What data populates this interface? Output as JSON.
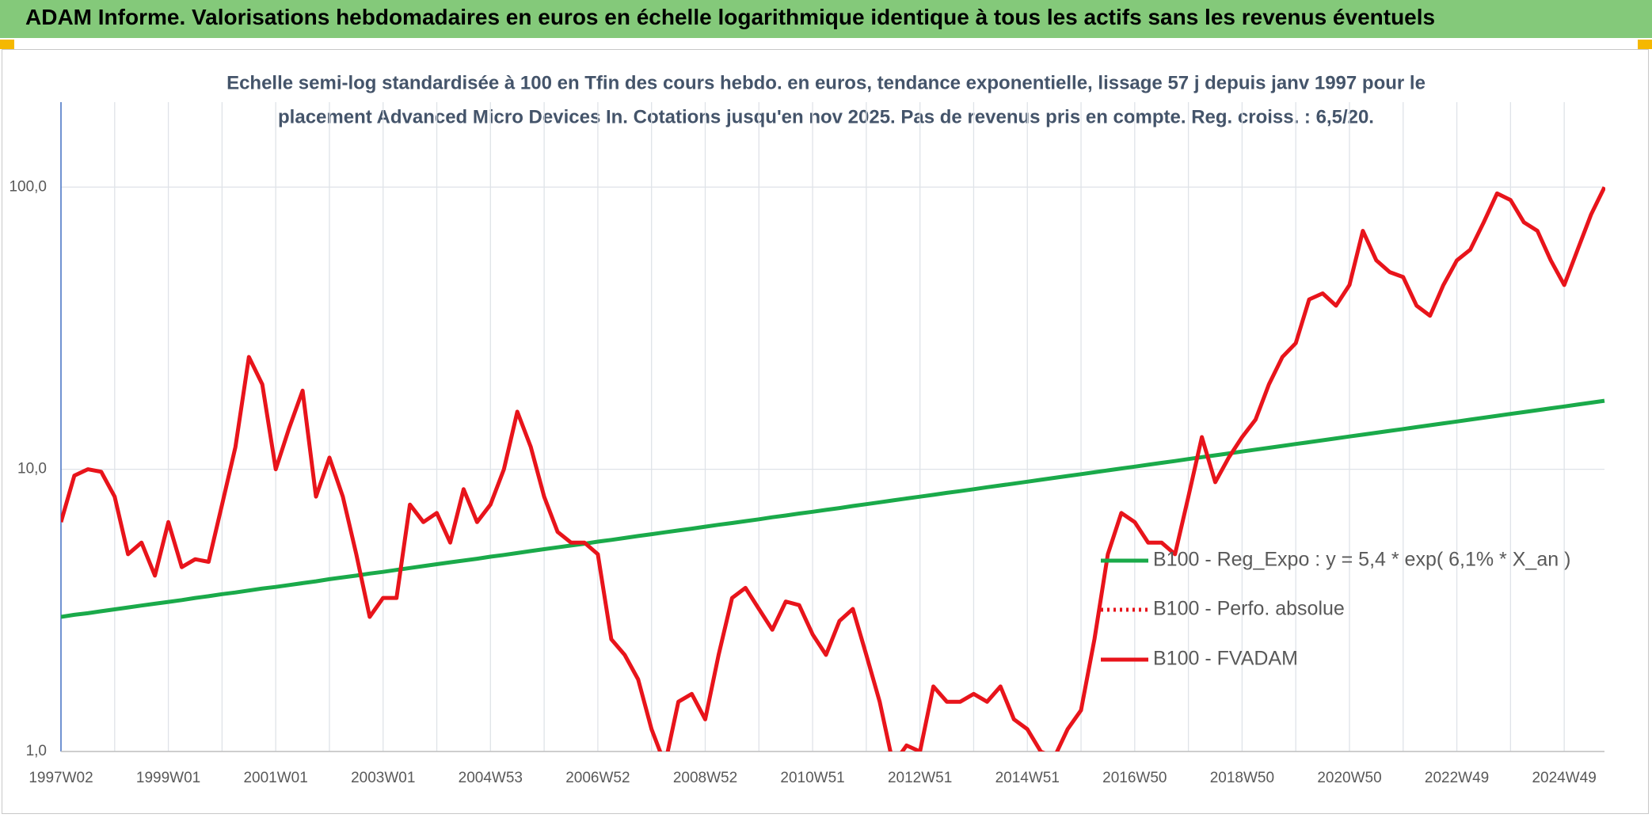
{
  "header": {
    "title": "ADAM Informe. Valorisations hebdomadaires en euros en échelle logarithmique identique à tous les actifs sans les revenus éventuels"
  },
  "chart_data": {
    "type": "line",
    "subtitle": [
      "Echelle semi-log standardisée à 100 en Tfin des cours hebdo. en euros, tendance exponentielle, lissage 57 j depuis janv 1997 pour le",
      "placement Advanced Micro Devices In. Cotations jusqu'en nov 2025. Pas de revenus pris en compte. Reg. croiss. : 6,5/20."
    ],
    "log_scale": true,
    "grid": true,
    "legend": "right",
    "ylim": [
      1,
      200
    ],
    "yticks": [
      {
        "value": 1,
        "label": "1,0"
      },
      {
        "value": 10,
        "label": "10,0"
      },
      {
        "value": 100,
        "label": "100,0"
      }
    ],
    "categories": [
      "1997W02",
      null,
      null,
      null,
      null,
      null,
      null,
      null,
      "1999W01",
      null,
      null,
      null,
      null,
      null,
      null,
      null,
      "2001W01",
      null,
      null,
      null,
      null,
      null,
      null,
      null,
      "2003W01",
      null,
      null,
      null,
      null,
      null,
      null,
      null,
      "2004W53",
      null,
      null,
      null,
      null,
      null,
      null,
      null,
      "2006W52",
      null,
      null,
      null,
      null,
      null,
      null,
      null,
      "2008W52",
      null,
      null,
      null,
      null,
      null,
      null,
      null,
      "2010W51",
      null,
      null,
      null,
      null,
      null,
      null,
      null,
      "2012W51",
      null,
      null,
      null,
      null,
      null,
      null,
      null,
      "2014W51",
      null,
      null,
      null,
      null,
      null,
      null,
      null,
      "2016W50",
      null,
      null,
      null,
      null,
      null,
      null,
      null,
      "2018W50",
      null,
      null,
      null,
      null,
      null,
      null,
      null,
      "2020W50",
      null,
      null,
      null,
      null,
      null,
      null,
      null,
      "2022W49",
      null,
      null,
      null,
      null,
      null,
      null,
      null,
      "2024W49",
      null,
      null,
      null
    ],
    "series": [
      {
        "name": "B100 - Reg_Expo : y = 5,4 * exp( 6,1% *  X_an )",
        "color": "#1aaa4a",
        "style": "solid",
        "values": [
          3.0,
          3.05,
          3.09,
          3.14,
          3.19,
          3.24,
          3.29,
          3.34,
          3.39,
          3.44,
          3.5,
          3.55,
          3.61,
          3.66,
          3.72,
          3.78,
          3.83,
          3.89,
          3.95,
          4.01,
          4.08,
          4.14,
          4.2,
          4.27,
          4.33,
          4.4,
          4.47,
          4.54,
          4.61,
          4.68,
          4.75,
          4.82,
          4.9,
          4.97,
          5.05,
          5.13,
          5.21,
          5.29,
          5.37,
          5.45,
          5.54,
          5.62,
          5.71,
          5.8,
          5.89,
          5.98,
          6.07,
          6.16,
          6.26,
          6.36,
          6.45,
          6.55,
          6.65,
          6.76,
          6.86,
          6.97,
          7.07,
          7.18,
          7.29,
          7.41,
          7.52,
          7.64,
          7.76,
          7.88,
          8.0,
          8.12,
          8.25,
          8.37,
          8.5,
          8.64,
          8.77,
          8.9,
          9.04,
          9.18,
          9.32,
          9.47,
          9.61,
          9.76,
          9.91,
          10.07,
          10.22,
          10.38,
          10.54,
          10.7,
          10.87,
          11.04,
          11.21,
          11.38,
          11.56,
          11.74,
          11.92,
          12.1,
          12.29,
          12.48,
          12.67,
          12.87,
          13.07,
          13.27,
          13.47,
          13.68,
          13.89,
          14.11,
          14.33,
          14.55,
          14.77,
          15.0,
          15.23,
          15.47,
          15.71,
          15.95,
          16.2,
          16.45,
          16.7,
          16.96,
          17.22,
          17.49
        ]
      },
      {
        "name": "B100 - Perfo. absolue",
        "color": "#e8141b",
        "style": "dotted"
      },
      {
        "name": "B100 - FVADAM",
        "color": "#e8141b",
        "style": "solid",
        "values": [
          6.5,
          9.5,
          10,
          9.8,
          8,
          5,
          5.5,
          4.2,
          6.5,
          4.5,
          4.8,
          4.7,
          7.5,
          12,
          25,
          20,
          10,
          14,
          19,
          8,
          11,
          8,
          5,
          3,
          3.5,
          3.5,
          7.5,
          6.5,
          7,
          5.5,
          8.5,
          6.5,
          7.5,
          10,
          16,
          12,
          8,
          6,
          5.5,
          5.5,
          5,
          2.5,
          2.2,
          1.8,
          1.2,
          0.9,
          1.5,
          1.6,
          1.3,
          2.2,
          3.5,
          3.8,
          3.2,
          2.7,
          3.4,
          3.3,
          2.6,
          2.2,
          2.9,
          3.2,
          2.2,
          1.5,
          0.9,
          1.05,
          1.0,
          1.7,
          1.5,
          1.5,
          1.6,
          1.5,
          1.7,
          1.3,
          1.2,
          1.0,
          0.95,
          1.2,
          1.4,
          2.5,
          5,
          7,
          6.5,
          5.5,
          5.5,
          5,
          8,
          13,
          9,
          11,
          13,
          15,
          20,
          25,
          28,
          40,
          42,
          38,
          45,
          70,
          55,
          50,
          48,
          38,
          35,
          45,
          55,
          60,
          75,
          95,
          90,
          75,
          70,
          55,
          45,
          60,
          80,
          100
        ]
      }
    ]
  }
}
